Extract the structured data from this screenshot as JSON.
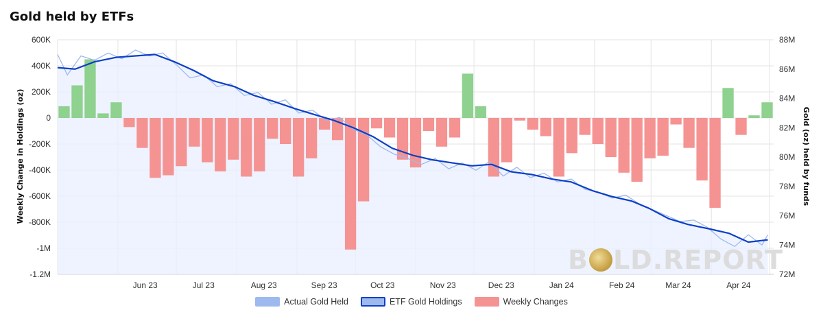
{
  "chart_title": "Gold held by ETFs",
  "watermark": {
    "left_text": "B",
    "right_text": "LD.REPORT"
  },
  "colors": {
    "actual": "#9db9ee",
    "holdings": "#0c3fc7",
    "pos_bar": "#8fd18f",
    "neg_bar": "#f59393",
    "area": "#e8efff"
  },
  "chart_data": {
    "type": "bar+line",
    "title": "Gold held by ETFs",
    "ylabel_left": "Weekly Change in Holdings (oz)",
    "ylabel_right": "Gold (oz) held by funds",
    "left_ylim": [
      -1200000,
      600000
    ],
    "right_ylim": [
      72000000,
      88000000
    ],
    "left_ticks": [
      "600K",
      "400K",
      "200K",
      "0",
      "-200K",
      "-400K",
      "-600K",
      "-800K",
      "-1M",
      "-1.2M"
    ],
    "right_ticks": [
      "88M",
      "86M",
      "84M",
      "82M",
      "80M",
      "78M",
      "76M",
      "74M",
      "72M"
    ],
    "x_ticks": [
      "Jun 23",
      "Jul 23",
      "Aug 23",
      "Sep 23",
      "Oct 23",
      "Nov 23",
      "Dec 23",
      "Jan 24",
      "Feb 24",
      "Mar 24",
      "Apr 24"
    ],
    "grid": true,
    "legend_position": "bottom",
    "series": [
      {
        "name": "Weekly Changes",
        "type": "bar",
        "values": [
          90000,
          250000,
          450000,
          35000,
          120000,
          -70000,
          -230000,
          -460000,
          -440000,
          -370000,
          -220000,
          -340000,
          -410000,
          -320000,
          -450000,
          -410000,
          -160000,
          -200000,
          -450000,
          -310000,
          -90000,
          -170000,
          -1010000,
          -640000,
          -80000,
          -150000,
          -320000,
          -380000,
          -100000,
          -220000,
          -150000,
          340000,
          90000,
          -450000,
          -340000,
          -20000,
          -90000,
          -140000,
          -450000,
          -270000,
          -130000,
          -200000,
          -300000,
          -420000,
          -490000,
          -310000,
          -290000,
          -50000,
          -230000,
          -480000,
          -690000,
          230000,
          -130000,
          20000,
          120000
        ]
      },
      {
        "name": "ETF Gold Holdings",
        "type": "line",
        "x_dates": [
          "2023-05-01",
          "2023-05-10",
          "2023-05-20",
          "2023-05-31",
          "2023-06-10",
          "2023-06-20",
          "2023-06-30",
          "2023-07-10",
          "2023-07-20",
          "2023-07-31",
          "2023-08-10",
          "2023-08-20",
          "2023-08-31",
          "2023-09-10",
          "2023-09-20",
          "2023-09-30",
          "2023-10-10",
          "2023-10-20",
          "2023-10-31",
          "2023-11-10",
          "2023-11-20",
          "2023-11-30",
          "2023-12-10",
          "2023-12-20",
          "2023-12-31",
          "2024-01-10",
          "2024-01-20",
          "2024-01-31",
          "2024-02-10",
          "2024-02-20",
          "2024-02-29",
          "2024-03-10",
          "2024-03-20",
          "2024-03-31",
          "2024-04-10",
          "2024-04-20",
          "2024-04-30"
        ],
        "values": [
          86100000,
          86000000,
          86500000,
          86800000,
          86900000,
          87000000,
          86500000,
          85900000,
          85200000,
          84800000,
          84200000,
          83800000,
          83300000,
          82900000,
          82500000,
          82000000,
          81400000,
          80600000,
          80100000,
          79800000,
          79600000,
          79400000,
          79500000,
          79000000,
          78800000,
          78500000,
          78300000,
          77700000,
          77300000,
          77000000,
          76500000,
          75800000,
          75400000,
          75100000,
          74800000,
          74200000,
          74350000
        ]
      },
      {
        "name": "Actual Gold Held",
        "type": "line",
        "x_dates": [
          "2023-05-01",
          "2023-05-06",
          "2023-05-13",
          "2023-05-20",
          "2023-05-27",
          "2023-06-03",
          "2023-06-10",
          "2023-06-17",
          "2023-06-24",
          "2023-07-01",
          "2023-07-08",
          "2023-07-15",
          "2023-07-22",
          "2023-07-29",
          "2023-08-05",
          "2023-08-12",
          "2023-08-19",
          "2023-08-26",
          "2023-09-02",
          "2023-09-09",
          "2023-09-16",
          "2023-09-23",
          "2023-09-30",
          "2023-10-07",
          "2023-10-14",
          "2023-10-21",
          "2023-10-28",
          "2023-11-04",
          "2023-11-11",
          "2023-11-18",
          "2023-11-25",
          "2023-12-02",
          "2023-12-09",
          "2023-12-16",
          "2023-12-23",
          "2023-12-30",
          "2024-01-06",
          "2024-01-13",
          "2024-01-20",
          "2024-01-27",
          "2024-02-03",
          "2024-02-10",
          "2024-02-17",
          "2024-02-24",
          "2024-03-02",
          "2024-03-09",
          "2024-03-16",
          "2024-03-23",
          "2024-03-30",
          "2024-04-06",
          "2024-04-13",
          "2024-04-20",
          "2024-04-27",
          "2024-04-30"
        ],
        "values": [
          87000000,
          85600000,
          86900000,
          86600000,
          87100000,
          86700000,
          87300000,
          86900000,
          87100000,
          86300000,
          85400000,
          85600000,
          84800000,
          85000000,
          84200000,
          84400000,
          83600000,
          83900000,
          83000000,
          83200000,
          82500000,
          82700000,
          81900000,
          81500000,
          80700000,
          80200000,
          79900000,
          79500000,
          79900000,
          79200000,
          79600000,
          79100000,
          79700000,
          78700000,
          79300000,
          78600000,
          78900000,
          78300000,
          78500000,
          77800000,
          77600000,
          77200000,
          77400000,
          76800000,
          76400000,
          76000000,
          75600000,
          75700000,
          75200000,
          74400000,
          73900000,
          74700000,
          74000000,
          74700000
        ]
      }
    ]
  }
}
